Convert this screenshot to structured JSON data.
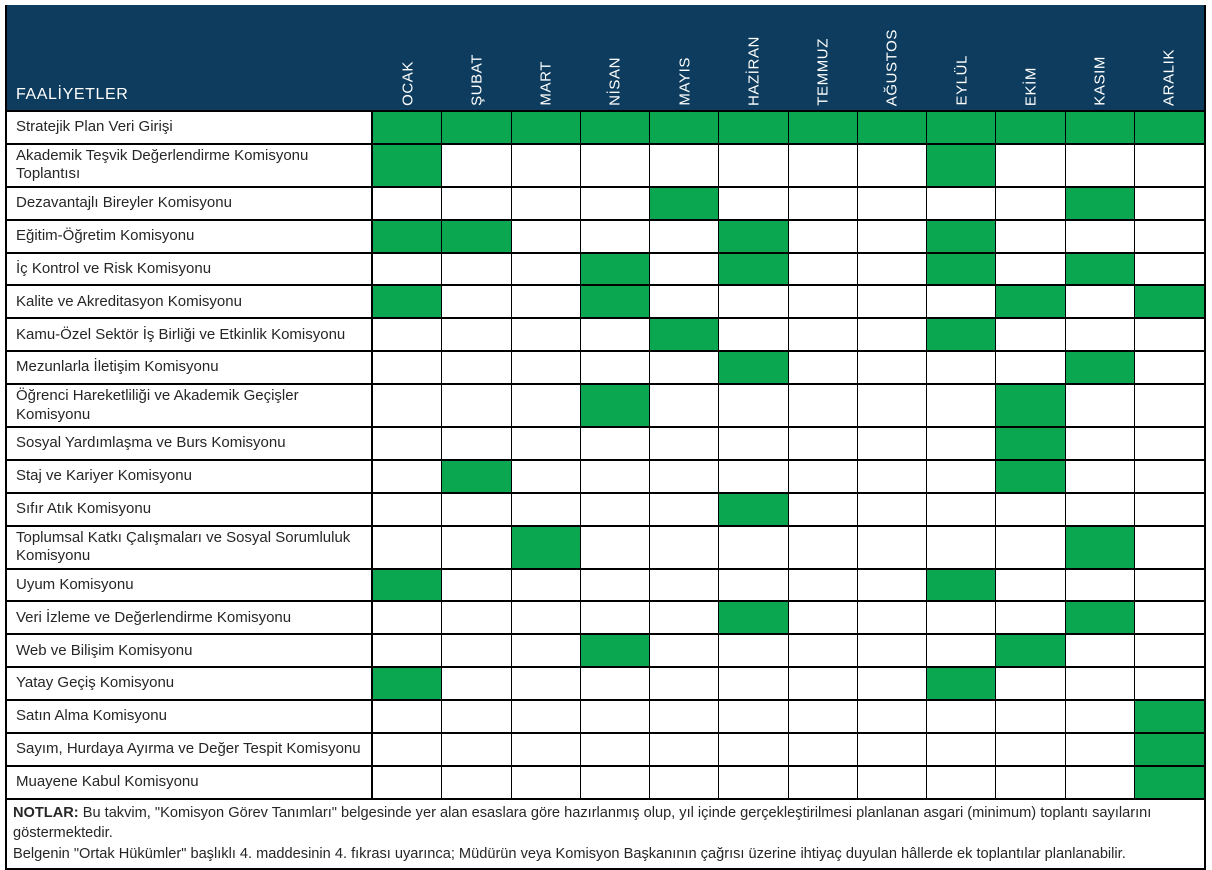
{
  "colors": {
    "header_bg": "#0d3c5e",
    "marked_green": "#0ba750",
    "border": "#000000"
  },
  "header": {
    "activities_label": "FAALİYETLER",
    "months": [
      "OCAK",
      "ŞUBAT",
      "MART",
      "NİSAN",
      "MAYIS",
      "HAZİRAN",
      "TEMMUZ",
      "AĞUSTOS",
      "EYLÜL",
      "EKİM",
      "KASIM",
      "ARALIK"
    ]
  },
  "rows": [
    {
      "label": "Stratejik Plan Veri Girişi",
      "marked_months": [
        1,
        2,
        3,
        4,
        5,
        6,
        7,
        8,
        9,
        10,
        11,
        12
      ]
    },
    {
      "label": "Akademik Teşvik Değerlendirme Komisyonu Toplantısı",
      "marked_months": [
        1,
        9
      ]
    },
    {
      "label": "Dezavantajlı Bireyler Komisyonu",
      "marked_months": [
        5,
        11
      ]
    },
    {
      "label": "Eğitim-Öğretim Komisyonu",
      "marked_months": [
        1,
        2,
        6,
        9
      ]
    },
    {
      "label": "İç Kontrol ve Risk Komisyonu",
      "marked_months": [
        4,
        6,
        9,
        11
      ]
    },
    {
      "label": "Kalite ve Akreditasyon Komisyonu",
      "marked_months": [
        1,
        4,
        10,
        12
      ]
    },
    {
      "label": "Kamu-Özel Sektör İş Birliği ve Etkinlik Komisyonu",
      "marked_months": [
        5,
        9
      ]
    },
    {
      "label": "Mezunlarla İletişim Komisyonu",
      "marked_months": [
        6,
        11
      ]
    },
    {
      "label": "Öğrenci Hareketliliği ve Akademik Geçişler Komisyonu",
      "marked_months": [
        4,
        10
      ]
    },
    {
      "label": "Sosyal Yardımlaşma ve Burs Komisyonu",
      "marked_months": [
        10
      ]
    },
    {
      "label": "Staj ve Kariyer Komisyonu",
      "marked_months": [
        2,
        10
      ]
    },
    {
      "label": "Sıfır Atık Komisyonu",
      "marked_months": [
        6
      ]
    },
    {
      "label": "Toplumsal Katkı Çalışmaları ve Sosyal Sorumluluk Komisyonu",
      "marked_months": [
        3,
        11
      ]
    },
    {
      "label": "Uyum Komisyonu",
      "marked_months": [
        1,
        9
      ]
    },
    {
      "label": "Veri İzleme ve Değerlendirme Komisyonu",
      "marked_months": [
        6,
        11
      ]
    },
    {
      "label": "Web ve Bilişim Komisyonu",
      "marked_months": [
        4,
        10
      ]
    },
    {
      "label": "Yatay Geçiş Komisyonu",
      "marked_months": [
        1,
        9
      ]
    },
    {
      "label": "Satın Alma Komisyonu",
      "marked_months": [
        12
      ]
    },
    {
      "label": "Sayım, Hurdaya Ayırma ve Değer Tespit Komisyonu",
      "marked_months": [
        12
      ]
    },
    {
      "label": "Muayene Kabul Komisyonu",
      "marked_months": [
        12
      ]
    }
  ],
  "notes": {
    "label": "NOTLAR:",
    "line1": "Bu takvim, \"Komisyon Görev Tanımları\" belgesinde yer alan esaslara göre hazırlanmış olup, yıl içinde gerçekleştirilmesi planlanan asgari (minimum) toplantı sayılarını göstermektedir.",
    "line2": "Belgenin \"Ortak Hükümler\" başlıklı 4. maddesinin 4. fıkrası uyarınca; Müdürün veya Komisyon Başkanının çağrısı üzerine ihtiyaç duyulan hâllerde ek toplantılar planlanabilir."
  }
}
